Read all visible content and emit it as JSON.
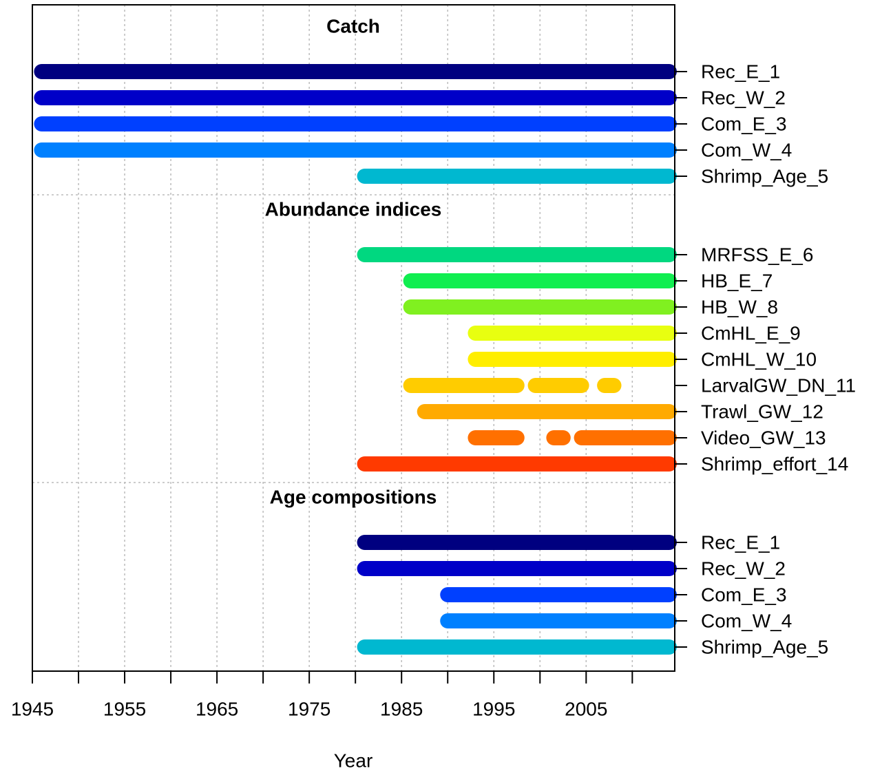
{
  "chart_data": {
    "type": "timeline",
    "xlabel": "Year",
    "xlim": [
      1945,
      2014.6
    ],
    "xticks": [
      1945,
      1955,
      1965,
      1975,
      1985,
      1995,
      2005
    ],
    "xminor_ticks": [
      1950,
      1960,
      1970,
      1980,
      1990,
      2000,
      2010
    ],
    "grid": true,
    "groups": [
      {
        "title": "Catch",
        "series": [
          {
            "name": "Rec_E_1",
            "color": "#000080",
            "segments": [
              [
                1946,
                2014
              ]
            ]
          },
          {
            "name": "Rec_W_2",
            "color": "#0000c8",
            "segments": [
              [
                1946,
                2014
              ]
            ]
          },
          {
            "name": "Com_E_3",
            "color": "#0040ff",
            "segments": [
              [
                1946,
                2014
              ]
            ]
          },
          {
            "name": "Com_W_4",
            "color": "#0080ff",
            "segments": [
              [
                1946,
                2014
              ]
            ]
          },
          {
            "name": "Shrimp_Age_5",
            "color": "#00b8d0",
            "segments": [
              [
                1981,
                2014
              ]
            ]
          }
        ]
      },
      {
        "title": "Abundance indices",
        "series": [
          {
            "name": "MRFSS_E_6",
            "color": "#00d880",
            "segments": [
              [
                1981,
                2014
              ]
            ]
          },
          {
            "name": "HB_E_7",
            "color": "#10ee50",
            "segments": [
              [
                1986,
                2014
              ]
            ]
          },
          {
            "name": "HB_W_8",
            "color": "#80f020",
            "segments": [
              [
                1986,
                2014
              ]
            ]
          },
          {
            "name": "CmHL_E_9",
            "color": "#e8ff10",
            "segments": [
              [
                1993,
                2014
              ]
            ]
          },
          {
            "name": "CmHL_W_10",
            "color": "#ffee00",
            "segments": [
              [
                1993,
                2014
              ]
            ]
          },
          {
            "name": "LarvalGW_DN_11",
            "color": "#ffcc00",
            "segments": [
              [
                1986,
                1997.5
              ],
              [
                1999.5,
                2004.5
              ],
              [
                2007,
                2008
              ]
            ]
          },
          {
            "name": "Trawl_GW_12",
            "color": "#ffaa00",
            "segments": [
              [
                1987.5,
                2014
              ]
            ]
          },
          {
            "name": "Video_GW_13",
            "color": "#ff7000",
            "segments": [
              [
                1993,
                1997.5
              ],
              [
                2001.5,
                2002.5
              ],
              [
                2004.5,
                2014
              ]
            ]
          },
          {
            "name": "Shrimp_effort_14",
            "color": "#ff3a00",
            "segments": [
              [
                1981,
                2014
              ]
            ]
          }
        ]
      },
      {
        "title": "Age compositions",
        "series": [
          {
            "name": "Rec_E_1",
            "color": "#000080",
            "segments": [
              [
                1981,
                2014
              ]
            ]
          },
          {
            "name": "Rec_W_2",
            "color": "#0000c8",
            "segments": [
              [
                1981,
                2014
              ]
            ]
          },
          {
            "name": "Com_E_3",
            "color": "#0040ff",
            "segments": [
              [
                1990,
                2014
              ]
            ]
          },
          {
            "name": "Com_W_4",
            "color": "#0080ff",
            "segments": [
              [
                1990,
                2014
              ]
            ]
          },
          {
            "name": "Shrimp_Age_5",
            "color": "#00b8d0",
            "segments": [
              [
                1981,
                2014
              ]
            ]
          }
        ]
      }
    ]
  }
}
